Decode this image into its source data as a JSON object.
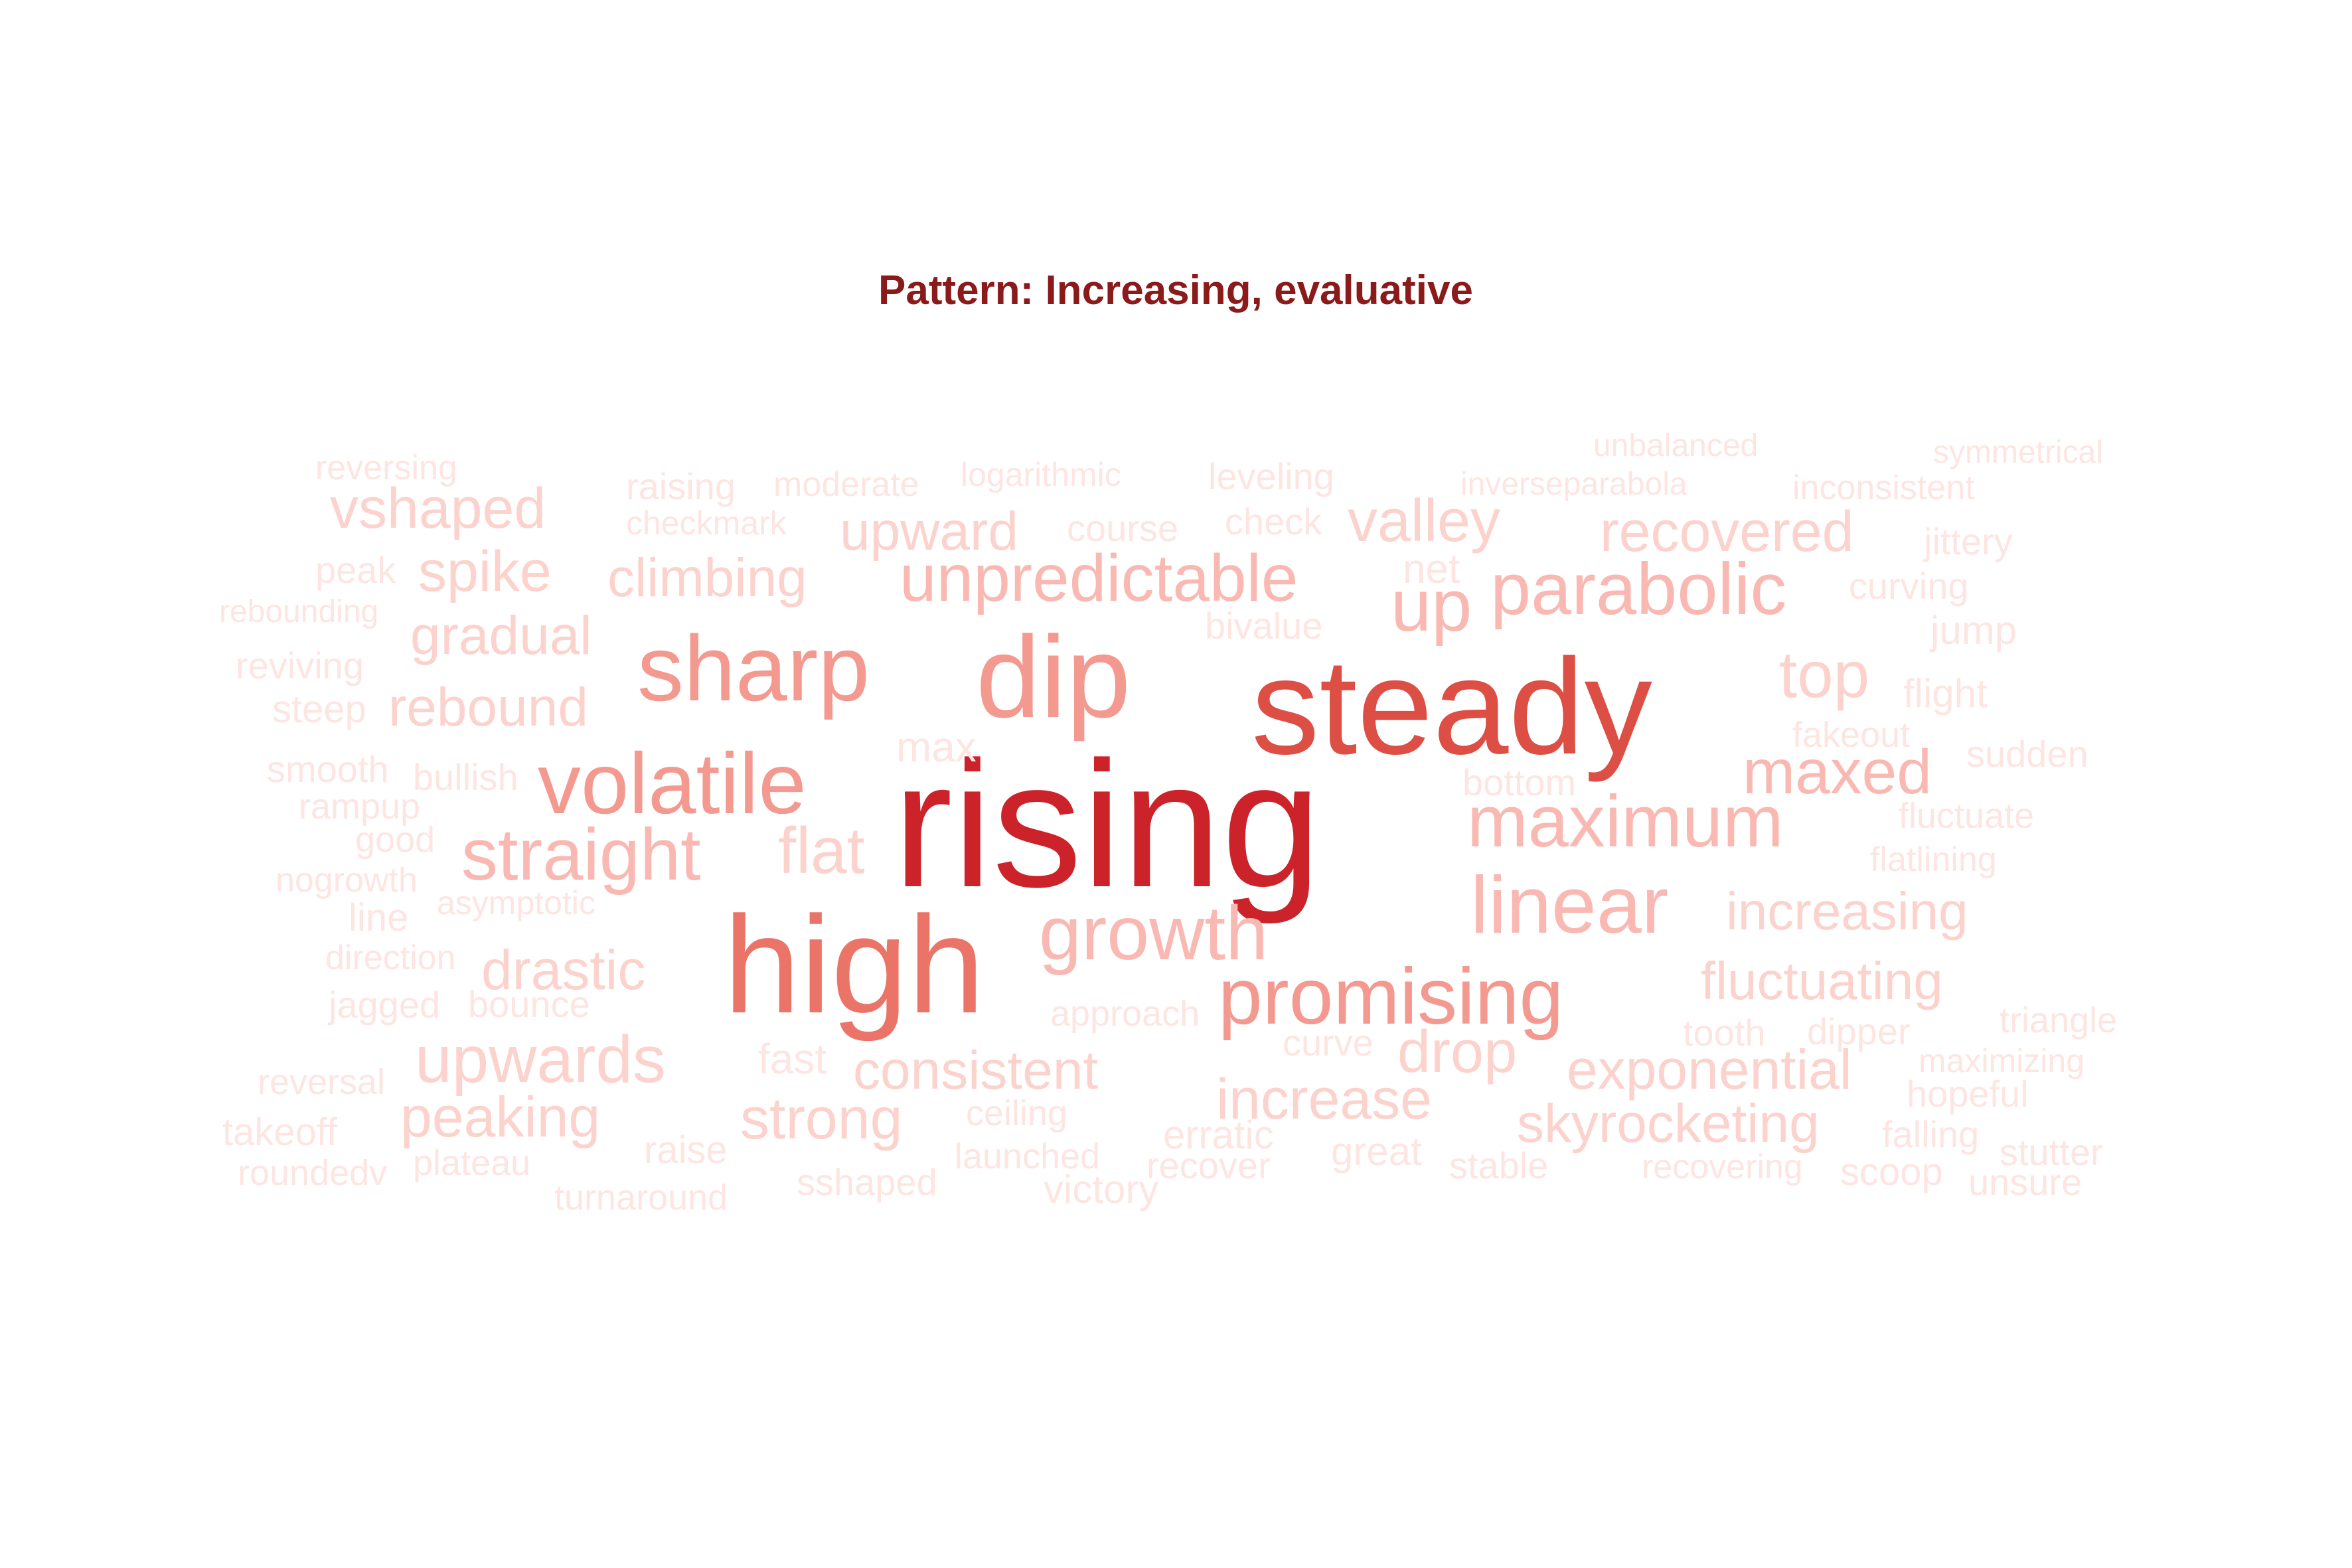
{
  "title": "Pattern: Increasing, evaluative",
  "colors": {
    "title": "#8b1a1a",
    "scale": [
      "#fde5e2",
      "#fcd2cd",
      "#f9b9b2",
      "#f4998f",
      "#ea7468",
      "#dd4f45",
      "#cc2229"
    ]
  },
  "words": [
    {
      "text": "rising",
      "weight": 7
    },
    {
      "text": "steady",
      "weight": 6
    },
    {
      "text": "high",
      "weight": 5
    },
    {
      "text": "dip",
      "weight": 4
    },
    {
      "text": "sharp",
      "weight": 4
    },
    {
      "text": "volatile",
      "weight": 4
    },
    {
      "text": "promising",
      "weight": 4
    },
    {
      "text": "linear",
      "weight": 3
    },
    {
      "text": "parabolic",
      "weight": 3
    },
    {
      "text": "maximum",
      "weight": 3
    },
    {
      "text": "growth",
      "weight": 3
    },
    {
      "text": "unpredictable",
      "weight": 3
    },
    {
      "text": "straight",
      "weight": 3
    },
    {
      "text": "maxed",
      "weight": 3
    },
    {
      "text": "up",
      "weight": 3
    },
    {
      "text": "top",
      "weight": 2
    },
    {
      "text": "flat",
      "weight": 2
    },
    {
      "text": "upwards",
      "weight": 2
    },
    {
      "text": "valley",
      "weight": 2
    },
    {
      "text": "recovered",
      "weight": 2
    },
    {
      "text": "drop",
      "weight": 2
    },
    {
      "text": "increase",
      "weight": 2
    },
    {
      "text": "exponential",
      "weight": 2
    },
    {
      "text": "skyrocketing",
      "weight": 2
    },
    {
      "text": "increasing",
      "weight": 2
    },
    {
      "text": "fluctuating",
      "weight": 2
    },
    {
      "text": "vshaped",
      "weight": 2
    },
    {
      "text": "spike",
      "weight": 2
    },
    {
      "text": "climbing",
      "weight": 2
    },
    {
      "text": "upward",
      "weight": 2
    },
    {
      "text": "gradual",
      "weight": 2
    },
    {
      "text": "rebound",
      "weight": 2
    },
    {
      "text": "drastic",
      "weight": 2
    },
    {
      "text": "peaking",
      "weight": 2
    },
    {
      "text": "consistent",
      "weight": 2
    },
    {
      "text": "strong",
      "weight": 2
    },
    {
      "text": "reversing",
      "weight": 1
    },
    {
      "text": "raising",
      "weight": 1
    },
    {
      "text": "moderate",
      "weight": 1
    },
    {
      "text": "logarithmic",
      "weight": 1
    },
    {
      "text": "leveling",
      "weight": 1
    },
    {
      "text": "unbalanced",
      "weight": 1
    },
    {
      "text": "symmetrical",
      "weight": 1
    },
    {
      "text": "inverseparabola",
      "weight": 1
    },
    {
      "text": "inconsistent",
      "weight": 1
    },
    {
      "text": "checkmark",
      "weight": 1
    },
    {
      "text": "course",
      "weight": 1
    },
    {
      "text": "check",
      "weight": 1
    },
    {
      "text": "jittery",
      "weight": 1
    },
    {
      "text": "peak",
      "weight": 1
    },
    {
      "text": "net",
      "weight": 1
    },
    {
      "text": "curving",
      "weight": 1
    },
    {
      "text": "rebounding",
      "weight": 1
    },
    {
      "text": "bivalue",
      "weight": 1
    },
    {
      "text": "jump",
      "weight": 1
    },
    {
      "text": "reviving",
      "weight": 1
    },
    {
      "text": "flight",
      "weight": 1
    },
    {
      "text": "steep",
      "weight": 1
    },
    {
      "text": "fakeout",
      "weight": 1
    },
    {
      "text": "max",
      "weight": 1
    },
    {
      "text": "smooth",
      "weight": 1
    },
    {
      "text": "bullish",
      "weight": 1
    },
    {
      "text": "sudden",
      "weight": 1
    },
    {
      "text": "bottom",
      "weight": 1
    },
    {
      "text": "rampup",
      "weight": 1
    },
    {
      "text": "fluctuate",
      "weight": 1
    },
    {
      "text": "good",
      "weight": 1
    },
    {
      "text": "flatlining",
      "weight": 1
    },
    {
      "text": "nogrowth",
      "weight": 1
    },
    {
      "text": "asymptotic",
      "weight": 1
    },
    {
      "text": "line",
      "weight": 1
    },
    {
      "text": "direction",
      "weight": 1
    },
    {
      "text": "jagged",
      "weight": 1
    },
    {
      "text": "bounce",
      "weight": 1
    },
    {
      "text": "approach",
      "weight": 1
    },
    {
      "text": "triangle",
      "weight": 1
    },
    {
      "text": "tooth",
      "weight": 1
    },
    {
      "text": "dipper",
      "weight": 1
    },
    {
      "text": "curve",
      "weight": 1
    },
    {
      "text": "fast",
      "weight": 1
    },
    {
      "text": "maximizing",
      "weight": 1
    },
    {
      "text": "reversal",
      "weight": 1
    },
    {
      "text": "hopeful",
      "weight": 1
    },
    {
      "text": "ceiling",
      "weight": 1
    },
    {
      "text": "takeoff",
      "weight": 1
    },
    {
      "text": "erratic",
      "weight": 1
    },
    {
      "text": "falling",
      "weight": 1
    },
    {
      "text": "roundedv",
      "weight": 1
    },
    {
      "text": "plateau",
      "weight": 1
    },
    {
      "text": "raise",
      "weight": 1
    },
    {
      "text": "launched",
      "weight": 1
    },
    {
      "text": "recover",
      "weight": 1
    },
    {
      "text": "great",
      "weight": 1
    },
    {
      "text": "stable",
      "weight": 1
    },
    {
      "text": "recovering",
      "weight": 1
    },
    {
      "text": "scoop",
      "weight": 1
    },
    {
      "text": "stutter",
      "weight": 1
    },
    {
      "text": "turnaround",
      "weight": 1
    },
    {
      "text": "sshaped",
      "weight": 1
    },
    {
      "text": "victory",
      "weight": 1
    },
    {
      "text": "unsure",
      "weight": 1
    }
  ]
}
